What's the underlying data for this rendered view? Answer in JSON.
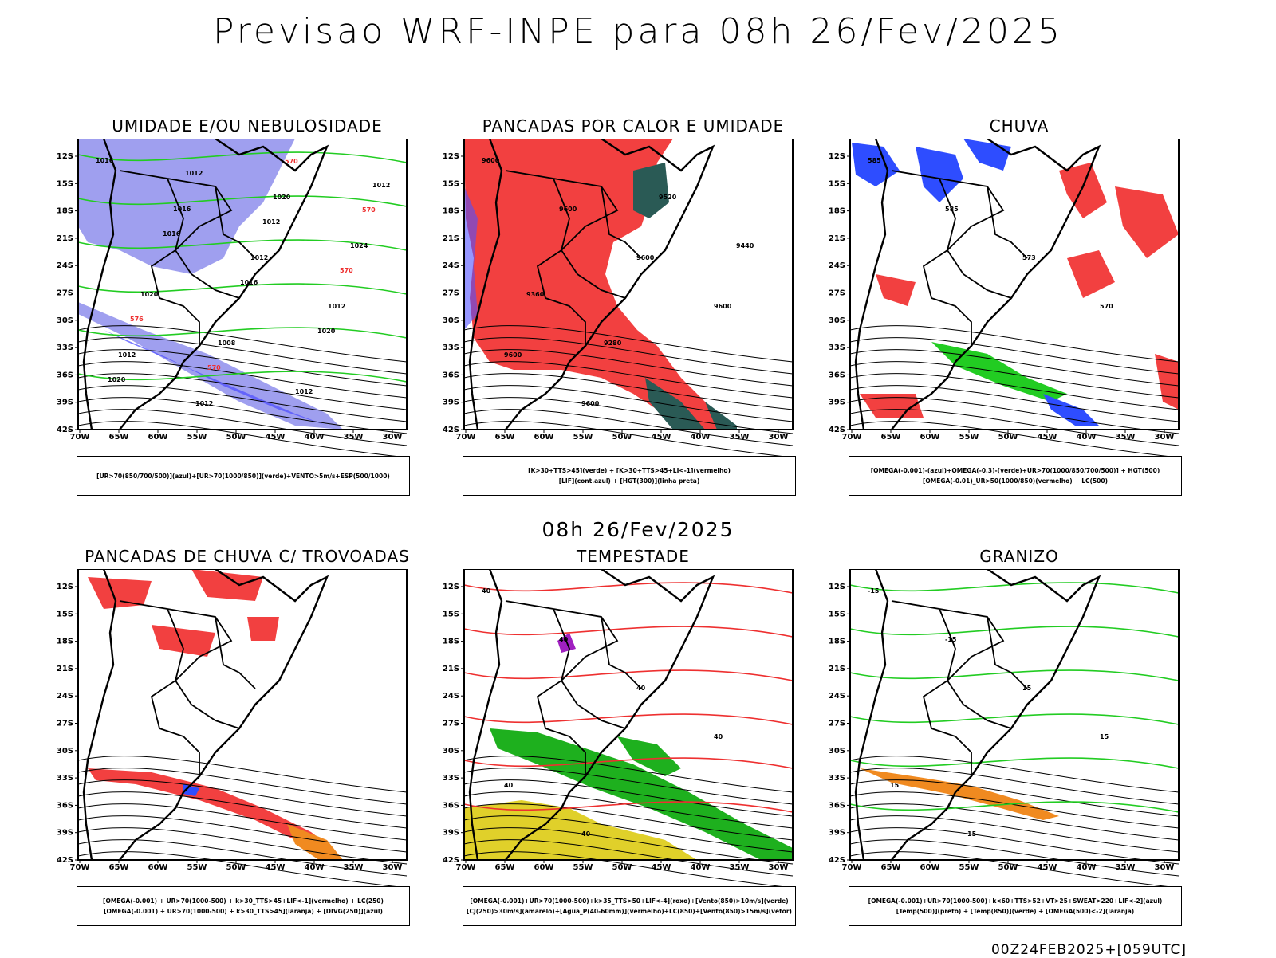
{
  "header": {
    "title": "Previsao WRF-INPE  para 08h 26/Fev/2025"
  },
  "middle_date": "08h 26/Fev/2025",
  "footer": {
    "run_tag": "00Z24FEB2025+[059UTC]"
  },
  "axes": {
    "lat_labels": [
      "12S",
      "15S",
      "18S",
      "21S",
      "24S",
      "27S",
      "30S",
      "33S",
      "36S",
      "39S",
      "42S"
    ],
    "lon_labels": [
      "70W",
      "65W",
      "60W",
      "55W",
      "50W",
      "45W",
      "40W",
      "35W",
      "30W"
    ]
  },
  "panels": [
    {
      "title": "UMIDADE E/OU NEBULOSIDADE",
      "caption": [
        "[UR>70(850/700/500)](azul)+[UR>70(1000/850)](verde)+VENTO>5m/s+ESP(500/1000)"
      ],
      "contour_labels": [
        "1016",
        "1016",
        "1012",
        "1012",
        "1012",
        "1012",
        "1020",
        "1024",
        "1020",
        "1008",
        "1012",
        "1012",
        "1016",
        "1016",
        "1020",
        "1020",
        "1012",
        "1012",
        "570",
        "576",
        "570",
        "570",
        "570"
      ]
    },
    {
      "title": "PANCADAS POR CALOR E UMIDADE",
      "caption": [
        "[K>30+TTS>45](verde) + [K>30+TTS>45+LI<-1](vermelho)",
        "[LIF](cont.azul) + [HGT(300)](linha preta)"
      ],
      "contour_labels": [
        "9600",
        "9600",
        "9600",
        "9600",
        "9600",
        "9600",
        "9520",
        "9440",
        "9360",
        "9280"
      ]
    },
    {
      "title": "CHUVA",
      "caption": [
        "[OMEGA(-0.001)-(azul)+OMEGA(-0.3)-(verde)+UR>70(1000/850/700/500)] + HGT(500)",
        "[OMEGA(-0.01)_UR>50(1000/850)(vermelho) + LC(500)"
      ],
      "contour_labels": [
        "585",
        "585",
        "573",
        "570"
      ]
    },
    {
      "title": "PANCADAS DE CHUVA C/ TROVOADAS",
      "caption": [
        "[OMEGA(-0.001) + UR>70(1000-500) + k>30_TTS>45+LIF<-1](vermelho) + LC(250)",
        "[OMEGA(-0.001) + UR>70(1000-500) + k>30_TTS>45](laranja) + [DIVG(250)](azul)"
      ],
      "contour_labels": []
    },
    {
      "title": "TEMPESTADE",
      "caption": [
        "[OMEGA(-0.001)+UR>70(1000-500)+k>35_TTS>50+LIF<-4](roxo)+[Vento(850)>10m/s](verde)",
        "[CJ(250)>30m/s](amarelo)+[Agua_P(40-60mm)](vermelho)+LC(850)+[Vento(850)>15m/s](vetor)"
      ],
      "contour_labels": [
        "40",
        "40",
        "40",
        "40",
        "40",
        "40"
      ]
    },
    {
      "title": "GRANIZO",
      "caption": [
        "[OMEGA(-0.001)+UR>70(1000-500)+k<60+TTS>52+VT>25+SWEAT>220+LIF<-2](azul)",
        "[Temp(500)](preto) + [Temp(850)](verde) + [OMEGA(500)<-2](laranja)"
      ],
      "contour_labels": [
        "-15",
        "-15",
        "15",
        "15",
        "15",
        "15"
      ]
    }
  ],
  "colors": {
    "blue_shade": "#9f9fef",
    "blue_dark": "#5050ff",
    "green_line": "#22cc22",
    "red_fill": "#f24040",
    "dark_teal": "#2a5a55",
    "orange": "#f08a20",
    "yellow": "#e0d02a",
    "purple": "#a020c0",
    "red_line": "#ee3030"
  }
}
